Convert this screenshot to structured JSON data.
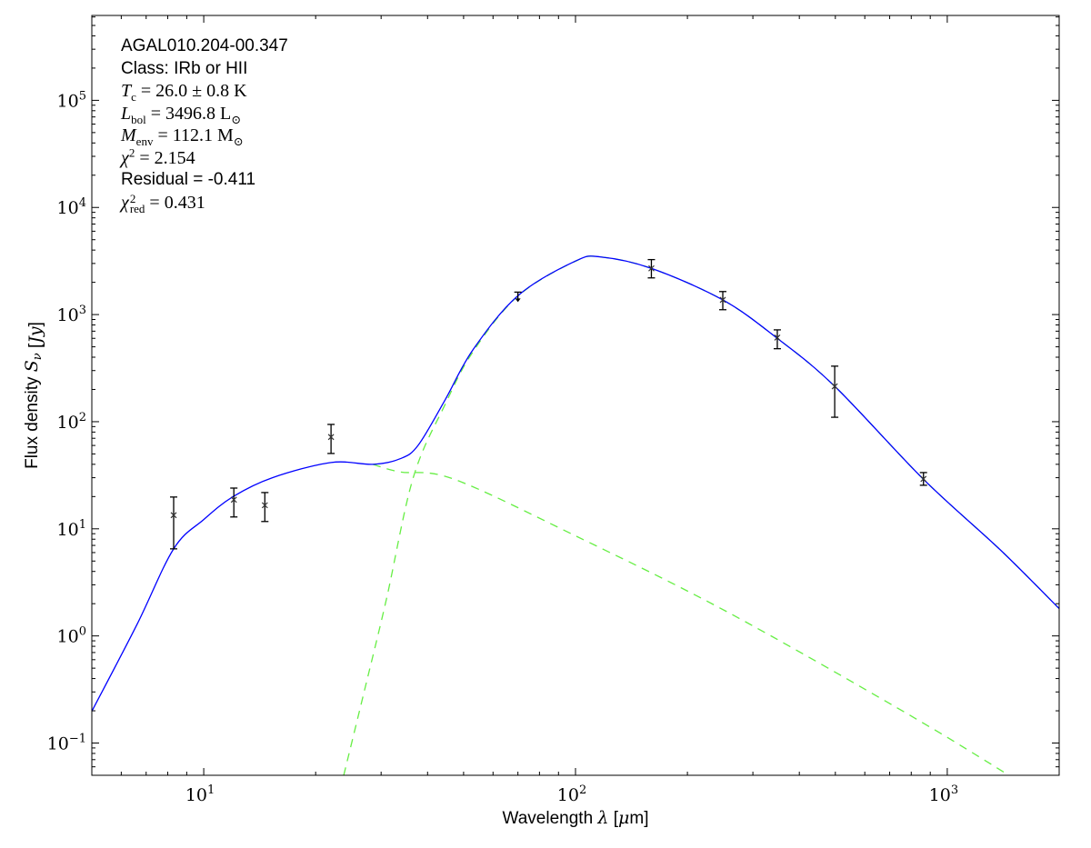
{
  "chart_data": {
    "type": "line",
    "xscale": "log",
    "yscale": "log",
    "xlim": [
      5,
      2000
    ],
    "ylim": [
      0.05,
      620000
    ],
    "xlabel": "Wavelength λ [μm]",
    "ylabel": "Flux density S_ν [Jy]",
    "x_ticks": [
      {
        "value": 10,
        "label": "10^1"
      },
      {
        "value": 100,
        "label": "10^2"
      },
      {
        "value": 1000,
        "label": "10^3"
      }
    ],
    "y_ticks": [
      {
        "value": 0.1,
        "label": "10^−1"
      },
      {
        "value": 1,
        "label": "10^0"
      },
      {
        "value": 10,
        "label": "10^1"
      },
      {
        "value": 100,
        "label": "10^2"
      },
      {
        "value": 1000,
        "label": "10^3"
      },
      {
        "value": 10000,
        "label": "10^4"
      },
      {
        "value": 100000,
        "label": "10^5"
      }
    ],
    "grid": false,
    "annotations": [
      {
        "text": "AGAL010.204-00.347",
        "style": "sans"
      },
      {
        "text": "Class: IRb or HII",
        "style": "sans"
      },
      {
        "text": "T_{c} = 26.0 ± 0.8 K",
        "style": "math"
      },
      {
        "text": "L_{bol} = 3496.8 L_{⊙}",
        "style": "math"
      },
      {
        "text": "M_{env} = 112.1 M_{⊙}",
        "style": "math"
      },
      {
        "text": "χ^{2} = 2.154",
        "style": "math"
      },
      {
        "text": "Residual = -0.411",
        "style": "sans"
      },
      {
        "text": "χ^{2}_{red} = 0.431",
        "style": "math"
      }
    ],
    "observations": [
      {
        "x": 8.3,
        "y": 13.4,
        "ylo": 6.5,
        "yhi": 19.8,
        "upper_limit": false
      },
      {
        "x": 12.05,
        "y": 18.7,
        "ylo": 12.9,
        "yhi": 24.0,
        "upper_limit": false
      },
      {
        "x": 14.6,
        "y": 16.6,
        "ylo": 11.7,
        "yhi": 21.8,
        "upper_limit": false
      },
      {
        "x": 22.0,
        "y": 72.0,
        "ylo": 50.5,
        "yhi": 94.3,
        "upper_limit": false
      },
      {
        "x": 70.0,
        "y": 1620,
        "upper_limit": true
      },
      {
        "x": 160,
        "y": 2700,
        "ylo": 2200,
        "yhi": 3260,
        "upper_limit": false
      },
      {
        "x": 249,
        "y": 1370,
        "ylo": 1110,
        "yhi": 1640,
        "upper_limit": false
      },
      {
        "x": 349,
        "y": 610,
        "ylo": 480,
        "yhi": 720,
        "upper_limit": false
      },
      {
        "x": 498,
        "y": 214,
        "ylo": 110,
        "yhi": 330,
        "upper_limit": false
      },
      {
        "x": 863,
        "y": 29.2,
        "ylo": 25.5,
        "yhi": 33.5,
        "upper_limit": false
      }
    ],
    "series": [
      {
        "role": "total fit",
        "color": "#0000ff",
        "dash": "solid",
        "x": [
          5,
          6.6,
          8.3,
          10,
          12,
          15.3,
          22,
          28.5,
          33.7,
          37.7,
          44.6,
          53,
          70,
          100,
          117,
          160,
          249,
          349,
          498,
          863,
          1386,
          2000
        ],
        "y": [
          0.198,
          1.26,
          6.5,
          12.2,
          20,
          30,
          41.6,
          40,
          45,
          60,
          160,
          470,
          1500,
          3160,
          3450,
          2700,
          1370,
          600,
          214,
          29,
          6.4,
          1.8
        ]
      },
      {
        "role": "warm component",
        "color": "#66ee44",
        "dash": "dashed",
        "x": [
          28.5,
          33.7,
          47.2,
          100,
          254,
          776,
          1465,
          2000
        ],
        "y": [
          40,
          34,
          29,
          8.6,
          1.7,
          0.19,
          0.05,
          0.025
        ]
      },
      {
        "role": "cold component",
        "color": "#66ee44",
        "dash": "dashed",
        "x": [
          23.8,
          27,
          31,
          36.6,
          44.6,
          53,
          70,
          100,
          117,
          160,
          249,
          349,
          498,
          863,
          1386,
          2000
        ],
        "y": [
          0.05,
          0.3,
          2.2,
          30,
          145,
          450,
          1490,
          3150,
          3445,
          2698,
          1369,
          600,
          214,
          29,
          6.4,
          1.8
        ]
      }
    ]
  }
}
